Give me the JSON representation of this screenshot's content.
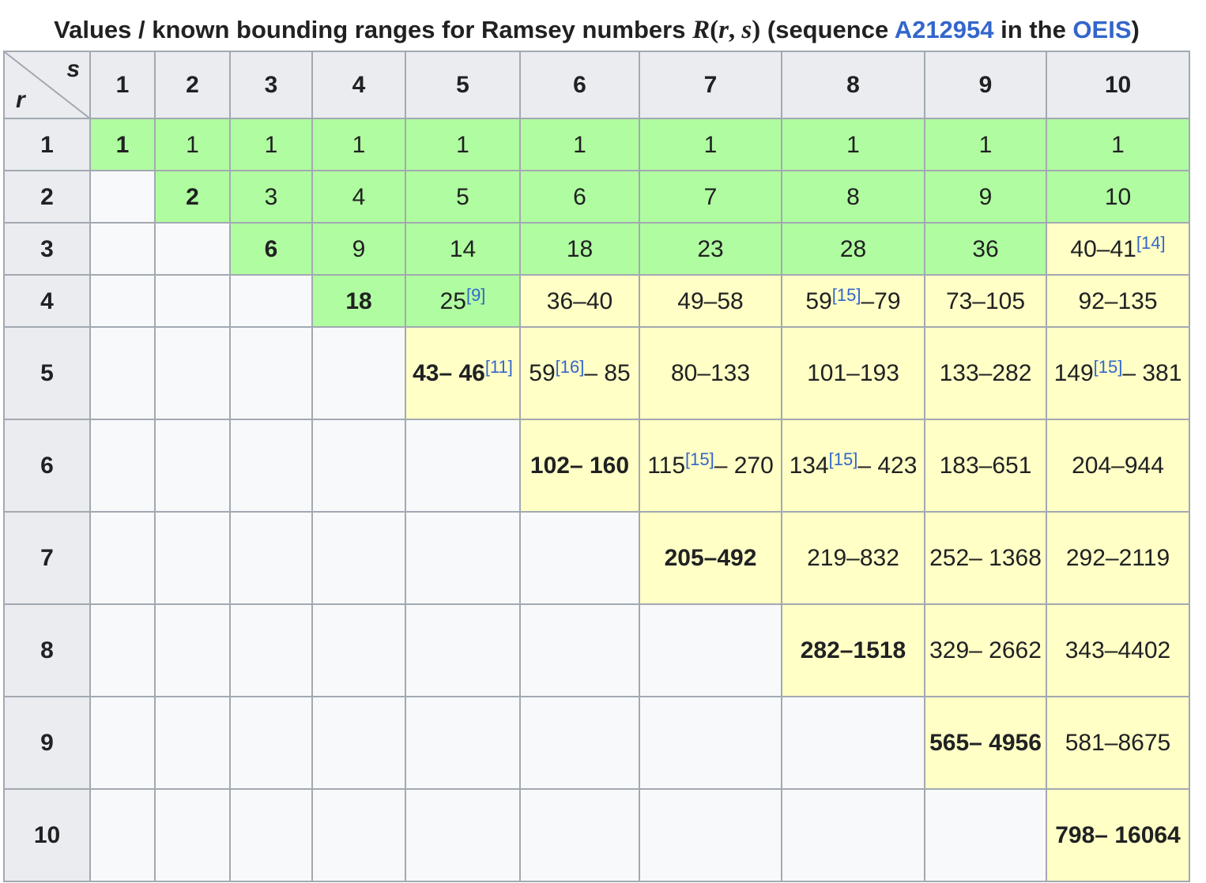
{
  "caption": {
    "prefix": "Values / known bounding ranges for Ramsey numbers ",
    "math_R": "R",
    "math_open": "(",
    "math_r": "r",
    "math_comma": ", ",
    "math_s": "s",
    "math_close": ")",
    "mid": " (sequence ",
    "link_sequence": "A212954",
    "in_the": " in the ",
    "link_oeis": "OEIS",
    "suffix": ")"
  },
  "table": {
    "corner_s": "s",
    "corner_r": "r",
    "column_headers": [
      "1",
      "2",
      "3",
      "4",
      "5",
      "6",
      "7",
      "8",
      "9",
      "10"
    ],
    "rows": [
      {
        "header": "1",
        "cells": [
          {
            "t": "1",
            "c": "green",
            "b": true
          },
          {
            "t": "1",
            "c": "green"
          },
          {
            "t": "1",
            "c": "green"
          },
          {
            "t": "1",
            "c": "green"
          },
          {
            "t": "1",
            "c": "green"
          },
          {
            "t": "1",
            "c": "green"
          },
          {
            "t": "1",
            "c": "green"
          },
          {
            "t": "1",
            "c": "green"
          },
          {
            "t": "1",
            "c": "green"
          },
          {
            "t": "1",
            "c": "green"
          }
        ]
      },
      {
        "header": "2",
        "cells": [
          {
            "t": "",
            "c": "empty"
          },
          {
            "t": "2",
            "c": "green",
            "b": true
          },
          {
            "t": "3",
            "c": "green"
          },
          {
            "t": "4",
            "c": "green"
          },
          {
            "t": "5",
            "c": "green"
          },
          {
            "t": "6",
            "c": "green"
          },
          {
            "t": "7",
            "c": "green"
          },
          {
            "t": "8",
            "c": "green"
          },
          {
            "t": "9",
            "c": "green"
          },
          {
            "t": "10",
            "c": "green"
          }
        ]
      },
      {
        "header": "3",
        "cells": [
          {
            "t": "",
            "c": "empty"
          },
          {
            "t": "",
            "c": "empty"
          },
          {
            "t": "6",
            "c": "green",
            "b": true
          },
          {
            "t": "9",
            "c": "green"
          },
          {
            "t": "14",
            "c": "green"
          },
          {
            "t": "18",
            "c": "green"
          },
          {
            "t": "23",
            "c": "green"
          },
          {
            "t": "28",
            "c": "green"
          },
          {
            "t": "36",
            "c": "green"
          },
          {
            "t": "40–41",
            "ref": "[14]",
            "c": "yellow"
          }
        ]
      },
      {
        "header": "4",
        "cells": [
          {
            "t": "",
            "c": "empty"
          },
          {
            "t": "",
            "c": "empty"
          },
          {
            "t": "",
            "c": "empty"
          },
          {
            "t": "18",
            "c": "green",
            "b": true
          },
          {
            "t": "25",
            "ref": "[9]",
            "c": "green"
          },
          {
            "t": "36–40",
            "c": "yellow"
          },
          {
            "t": "49–58",
            "c": "yellow"
          },
          {
            "t": "59",
            "ref": "[15]",
            "after": "–79",
            "c": "yellow"
          },
          {
            "t": "73–105",
            "c": "yellow"
          },
          {
            "t": "92–135",
            "c": "yellow"
          }
        ]
      },
      {
        "header": "5",
        "cells": [
          {
            "t": "",
            "c": "empty"
          },
          {
            "t": "",
            "c": "empty"
          },
          {
            "t": "",
            "c": "empty"
          },
          {
            "t": "",
            "c": "empty"
          },
          {
            "t": "43– 46",
            "ref": "[11]",
            "c": "yellow",
            "b": true
          },
          {
            "t": "59",
            "ref": "[16]",
            "after": "– 85",
            "c": "yellow"
          },
          {
            "t": "80–133",
            "c": "yellow"
          },
          {
            "t": "101–193",
            "c": "yellow"
          },
          {
            "t": "133–282",
            "c": "yellow"
          },
          {
            "t": "149",
            "ref": "[15]",
            "after": "– 381",
            "c": "yellow"
          }
        ]
      },
      {
        "header": "6",
        "cells": [
          {
            "t": "",
            "c": "empty"
          },
          {
            "t": "",
            "c": "empty"
          },
          {
            "t": "",
            "c": "empty"
          },
          {
            "t": "",
            "c": "empty"
          },
          {
            "t": "",
            "c": "empty"
          },
          {
            "t": "102– 160",
            "c": "yellow",
            "b": true
          },
          {
            "t": "115",
            "ref": "[15]",
            "after": "– 270",
            "c": "yellow"
          },
          {
            "t": "134",
            "ref": "[15]",
            "after": "– 423",
            "c": "yellow"
          },
          {
            "t": "183–651",
            "c": "yellow"
          },
          {
            "t": "204–944",
            "c": "yellow"
          }
        ]
      },
      {
        "header": "7",
        "cells": [
          {
            "t": "",
            "c": "empty"
          },
          {
            "t": "",
            "c": "empty"
          },
          {
            "t": "",
            "c": "empty"
          },
          {
            "t": "",
            "c": "empty"
          },
          {
            "t": "",
            "c": "empty"
          },
          {
            "t": "",
            "c": "empty"
          },
          {
            "t": "205–492",
            "c": "yellow",
            "b": true
          },
          {
            "t": "219–832",
            "c": "yellow"
          },
          {
            "t": "252– 1368",
            "c": "yellow"
          },
          {
            "t": "292–2119",
            "c": "yellow"
          }
        ]
      },
      {
        "header": "8",
        "cells": [
          {
            "t": "",
            "c": "empty"
          },
          {
            "t": "",
            "c": "empty"
          },
          {
            "t": "",
            "c": "empty"
          },
          {
            "t": "",
            "c": "empty"
          },
          {
            "t": "",
            "c": "empty"
          },
          {
            "t": "",
            "c": "empty"
          },
          {
            "t": "",
            "c": "empty"
          },
          {
            "t": "282–1518",
            "c": "yellow",
            "b": true
          },
          {
            "t": "329– 2662",
            "c": "yellow"
          },
          {
            "t": "343–4402",
            "c": "yellow"
          }
        ]
      },
      {
        "header": "9",
        "cells": [
          {
            "t": "",
            "c": "empty"
          },
          {
            "t": "",
            "c": "empty"
          },
          {
            "t": "",
            "c": "empty"
          },
          {
            "t": "",
            "c": "empty"
          },
          {
            "t": "",
            "c": "empty"
          },
          {
            "t": "",
            "c": "empty"
          },
          {
            "t": "",
            "c": "empty"
          },
          {
            "t": "",
            "c": "empty"
          },
          {
            "t": "565– 4956",
            "c": "yellow",
            "b": true
          },
          {
            "t": "581–8675",
            "c": "yellow"
          }
        ]
      },
      {
        "header": "10",
        "cells": [
          {
            "t": "",
            "c": "empty"
          },
          {
            "t": "",
            "c": "empty"
          },
          {
            "t": "",
            "c": "empty"
          },
          {
            "t": "",
            "c": "empty"
          },
          {
            "t": "",
            "c": "empty"
          },
          {
            "t": "",
            "c": "empty"
          },
          {
            "t": "",
            "c": "empty"
          },
          {
            "t": "",
            "c": "empty"
          },
          {
            "t": "",
            "c": "empty"
          },
          {
            "t": "798– 16064",
            "c": "yellow",
            "b": true
          }
        ]
      }
    ]
  },
  "colors": {
    "known_value": "#b0fca0",
    "bounding_range": "#ffffc6",
    "header_bg": "#eaecf0",
    "link": "#3366cc"
  }
}
